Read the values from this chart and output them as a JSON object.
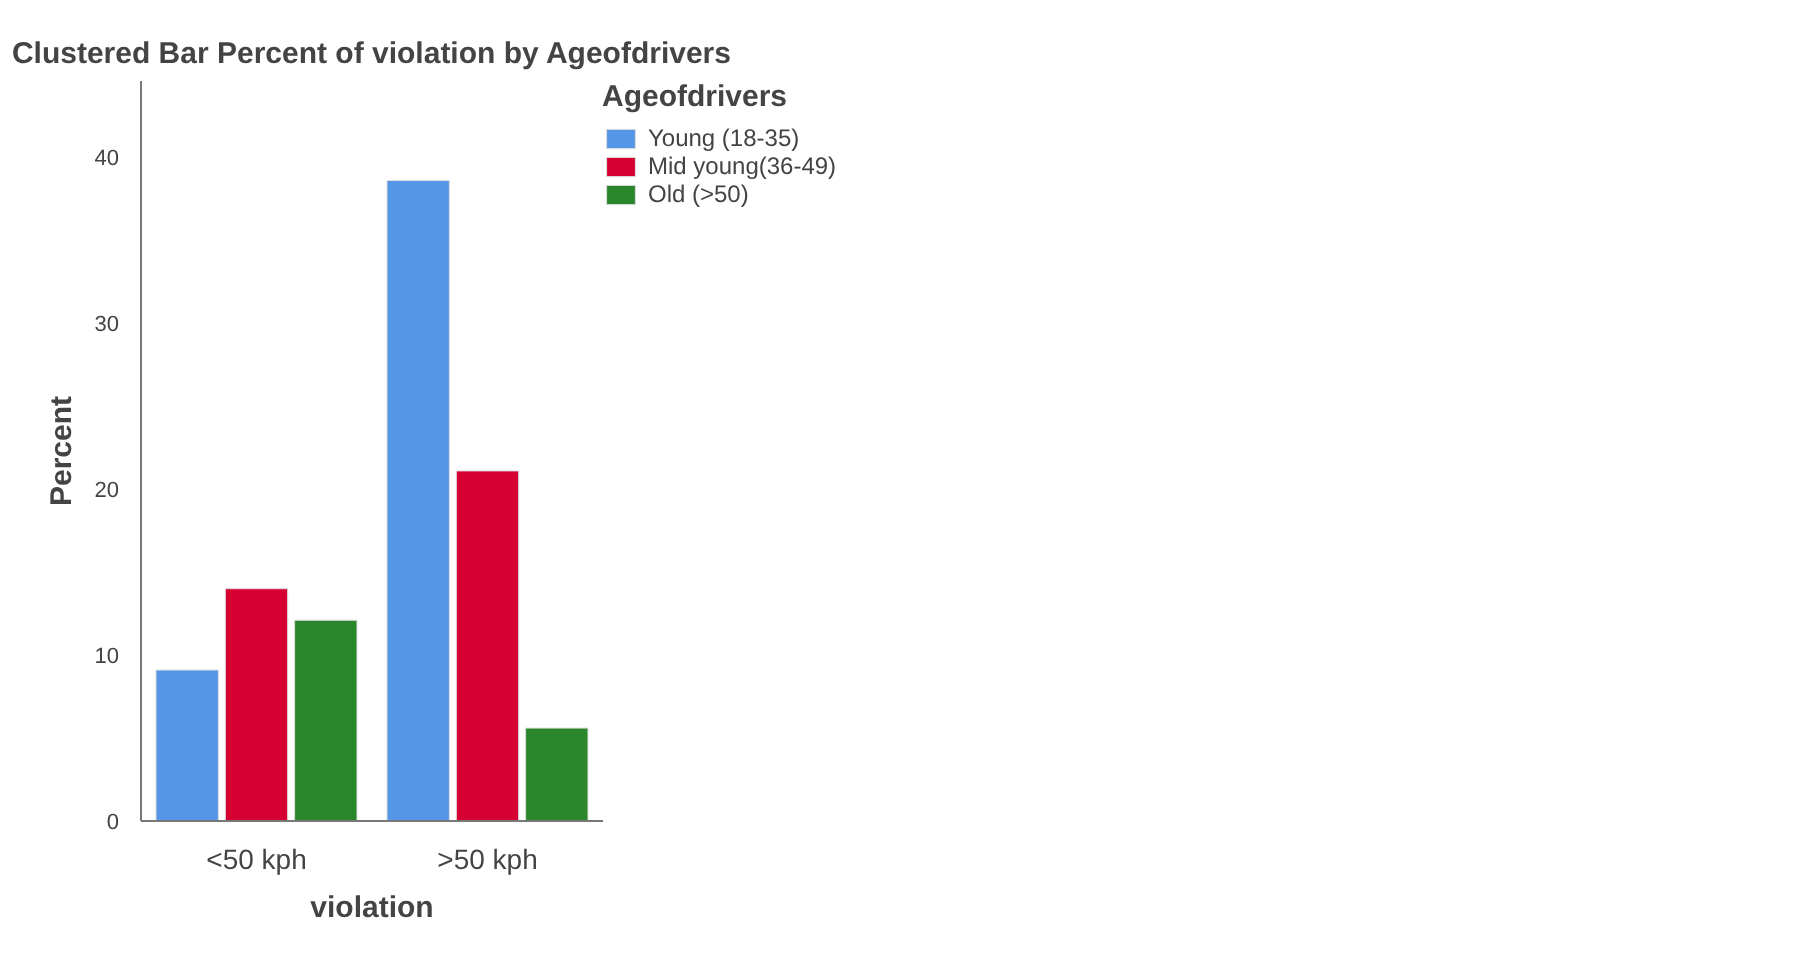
{
  "chart_data": {
    "type": "bar",
    "title": "Clustered Bar Percent of violation by Ageofdrivers",
    "xlabel": "violation",
    "ylabel": "Percent",
    "legend_title": "Ageofdrivers",
    "categories": [
      "<50 kph",
      ">50 kph"
    ],
    "series": [
      {
        "name": "Young (18-35)",
        "color": "#5596e6",
        "values": [
          9.1,
          38.6
        ]
      },
      {
        "name": "Mid young(36-49)",
        "color": "#d60032",
        "values": [
          14.0,
          21.1
        ]
      },
      {
        "name": "Old (>50)",
        "color": "#2a862a",
        "values": [
          12.1,
          5.6
        ]
      }
    ],
    "ylim": [
      0,
      44.6
    ],
    "yticks": [
      0,
      10,
      20,
      30,
      40
    ],
    "grid": false,
    "legend": "top right"
  }
}
